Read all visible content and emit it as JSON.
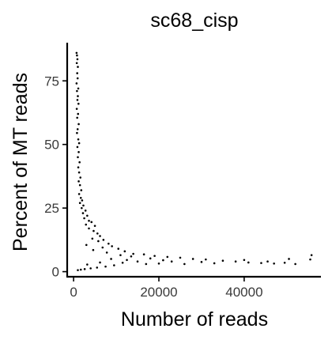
{
  "chart_data": {
    "type": "scatter",
    "title": "sc68_cisp",
    "xlabel": "Number of reads",
    "ylabel": "Percent of MT reads",
    "xlim": [
      -1500,
      58000
    ],
    "ylim": [
      -2,
      90
    ],
    "x_ticks": [
      0,
      20000,
      40000
    ],
    "y_ticks": [
      0,
      25,
      50,
      75
    ],
    "x_tick_labels": [
      "0",
      "20000",
      "40000"
    ],
    "y_tick_labels": [
      "0",
      "25",
      "50",
      "75"
    ],
    "grid": false,
    "legend": "none",
    "point_color": "#000000",
    "series": [
      {
        "points": [
          [
            700,
            86.0
          ],
          [
            800,
            85.0
          ],
          [
            900,
            83.5
          ],
          [
            750,
            82.0
          ],
          [
            1000,
            80.5
          ],
          [
            850,
            78.0
          ],
          [
            950,
            76.0
          ],
          [
            700,
            74.0
          ],
          [
            1100,
            72.0
          ],
          [
            800,
            71.0
          ],
          [
            1000,
            69.0
          ],
          [
            900,
            67.5
          ],
          [
            1150,
            66.0
          ],
          [
            750,
            64.0
          ],
          [
            1050,
            62.0
          ],
          [
            850,
            60.5
          ],
          [
            1200,
            58.0
          ],
          [
            950,
            56.0
          ],
          [
            800,
            54.5
          ],
          [
            1100,
            52.0
          ],
          [
            1300,
            50.5
          ],
          [
            900,
            49.0
          ],
          [
            1200,
            47.0
          ],
          [
            1000,
            45.0
          ],
          [
            1400,
            43.0
          ],
          [
            1100,
            41.0
          ],
          [
            1300,
            39.0
          ],
          [
            1600,
            37.0
          ],
          [
            1200,
            35.5
          ],
          [
            1500,
            34.0
          ],
          [
            1800,
            32.0
          ],
          [
            1300,
            30.5
          ],
          [
            1700,
            29.0
          ],
          [
            2000,
            28.0
          ],
          [
            1500,
            27.0
          ],
          [
            2300,
            26.0
          ],
          [
            1900,
            25.0
          ],
          [
            2800,
            24.0
          ],
          [
            2200,
            23.0
          ],
          [
            3200,
            22.0
          ],
          [
            2500,
            21.0
          ],
          [
            3600,
            20.0
          ],
          [
            4200,
            19.5
          ],
          [
            2900,
            18.5
          ],
          [
            5000,
            18.0
          ],
          [
            3600,
            17.0
          ],
          [
            4700,
            16.0
          ],
          [
            5600,
            15.0
          ],
          [
            6200,
            14.0
          ],
          [
            4400,
            13.0
          ],
          [
            7000,
            12.5
          ],
          [
            5800,
            12.0
          ],
          [
            8200,
            11.0
          ],
          [
            3000,
            10.5
          ],
          [
            9000,
            10.0
          ],
          [
            6800,
            9.5
          ],
          [
            10500,
            9.0
          ],
          [
            4600,
            8.5
          ],
          [
            12000,
            8.0
          ],
          [
            7800,
            7.5
          ],
          [
            14000,
            7.0
          ],
          [
            16500,
            6.8
          ],
          [
            11000,
            6.5
          ],
          [
            19000,
            6.2
          ],
          [
            13500,
            6.0
          ],
          [
            22000,
            5.8
          ],
          [
            25000,
            5.5
          ],
          [
            18000,
            5.2
          ],
          [
            28000,
            5.0
          ],
          [
            31000,
            4.8
          ],
          [
            21000,
            4.5
          ],
          [
            35000,
            4.3
          ],
          [
            38000,
            4.0
          ],
          [
            30000,
            3.8
          ],
          [
            41000,
            3.6
          ],
          [
            44000,
            3.4
          ],
          [
            47000,
            3.2
          ],
          [
            49500,
            3.5
          ],
          [
            52000,
            3.0
          ],
          [
            55500,
            4.8
          ],
          [
            55800,
            6.5
          ],
          [
            50500,
            5.0
          ],
          [
            45500,
            4.0
          ],
          [
            40000,
            4.6
          ],
          [
            33000,
            3.3
          ],
          [
            26000,
            3.0
          ],
          [
            23000,
            4.0
          ],
          [
            20000,
            3.2
          ],
          [
            17000,
            3.0
          ],
          [
            15000,
            4.0
          ],
          [
            11500,
            3.5
          ],
          [
            9500,
            2.5
          ],
          [
            7500,
            2.0
          ],
          [
            5500,
            1.6
          ],
          [
            4000,
            1.3
          ],
          [
            2600,
            1.0
          ],
          [
            1700,
            0.8
          ],
          [
            1000,
            0.6
          ],
          [
            3200,
            2.8
          ],
          [
            6200,
            3.6
          ],
          [
            8800,
            5.0
          ],
          [
            12500,
            4.6
          ]
        ]
      }
    ]
  }
}
